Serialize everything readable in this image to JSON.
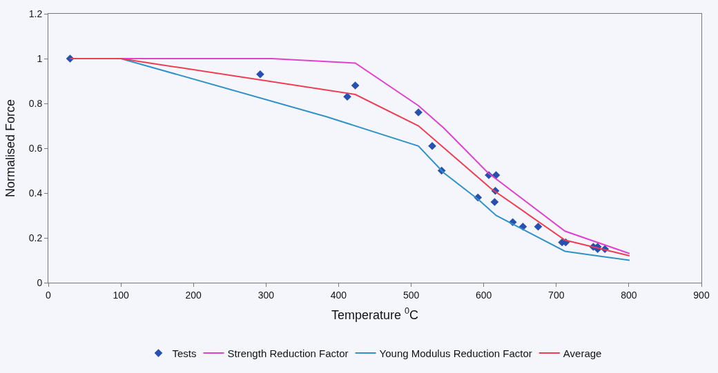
{
  "chart_data": {
    "type": "line",
    "xlabel": "Temperature $^{0}$C",
    "ylabel": "Normalised Force",
    "xlim": [
      0,
      900
    ],
    "xticks": [
      0,
      100,
      200,
      300,
      400,
      500,
      600,
      700,
      800,
      900
    ],
    "ylim": [
      0,
      1.2
    ],
    "yticks": [
      0,
      0.2,
      0.4,
      0.6,
      0.8,
      1,
      1.2
    ],
    "grid": false,
    "legend": "bottom",
    "series": [
      {
        "name": "Tests",
        "type": "scatter",
        "marker": "diamond",
        "color": "#2850b0",
        "x": [
          30,
          292,
          412,
          423,
          510,
          529,
          542,
          592,
          607,
          617,
          616,
          615,
          640,
          654,
          675,
          708,
          713,
          751,
          757,
          757,
          767
        ],
        "values": [
          1.0,
          0.93,
          0.83,
          0.88,
          0.76,
          0.61,
          0.5,
          0.38,
          0.48,
          0.48,
          0.41,
          0.36,
          0.27,
          0.25,
          0.25,
          0.18,
          0.18,
          0.16,
          0.15,
          0.16,
          0.15
        ]
      },
      {
        "name": "Strength Reduction Factor",
        "marker": "none",
        "color": "#e040d0",
        "x": [
          30,
          100,
          308,
          423,
          510,
          545,
          606,
          712,
          801
        ],
        "values": [
          1.0,
          1.0,
          1.0,
          0.98,
          0.79,
          0.69,
          0.49,
          0.23,
          0.13
        ]
      },
      {
        "name": "Young Modulus Reduction Factor",
        "marker": "none",
        "color": "#3090c8",
        "x": [
          30,
          100,
          384,
          510,
          545,
          593,
          617,
          712,
          756,
          801
        ],
        "values": [
          1.0,
          1.0,
          0.74,
          0.61,
          0.49,
          0.37,
          0.3,
          0.14,
          0.12,
          0.1
        ]
      },
      {
        "name": "Average",
        "marker": "none",
        "color": "#f03c50",
        "x": [
          30,
          100,
          423,
          510,
          610,
          712,
          801
        ],
        "values": [
          1.0,
          1.0,
          0.84,
          0.7,
          0.42,
          0.19,
          0.12
        ]
      }
    ]
  }
}
